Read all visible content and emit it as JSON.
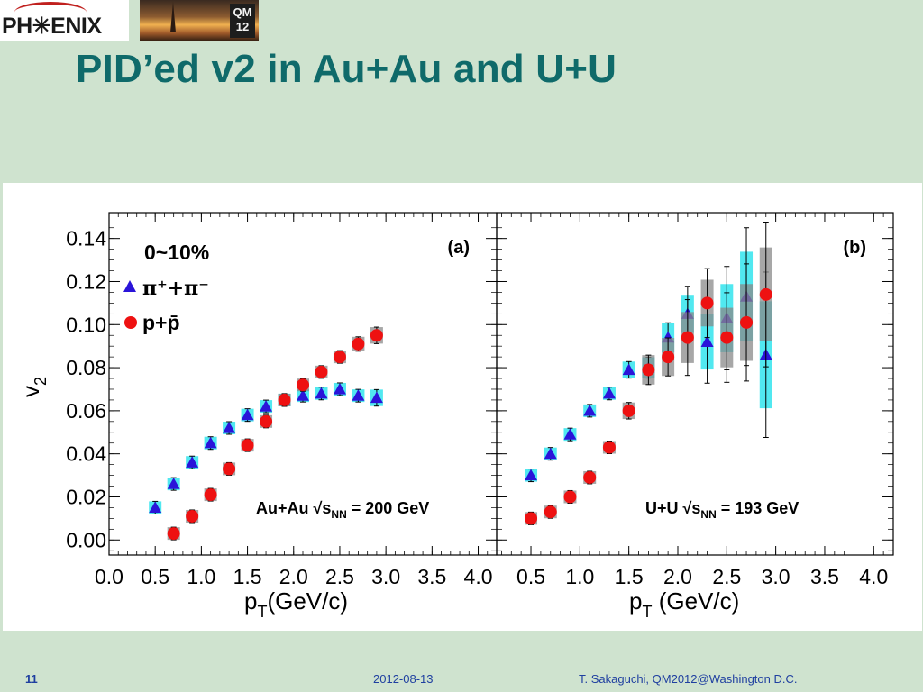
{
  "header": {
    "logo_text": "PH✳ENIX",
    "badge_text": "QM 12",
    "title": "PID’ed v2 in Au+Au and U+U"
  },
  "footer": {
    "slide_number": "11",
    "date": "2012-08-13",
    "author": "T. Sakaguchi, QM2012@Washington D.C."
  },
  "colors": {
    "background": "#cfe3cf",
    "title": "#0f6a6a",
    "footer": "#1f3fa0",
    "pion_marker": "#2a14d9",
    "proton_marker": "#ee1111",
    "pion_syst_box": "#3ee6ee",
    "proton_syst_box": "#8a8a8a"
  },
  "legend": {
    "centrality": "0~10%",
    "pion_label": "π⁺+π⁻",
    "proton_label": "p+p̄"
  },
  "chart_data": [
    {
      "type": "scatter",
      "panel_label": "(a)",
      "system_label": "Au+Au √sNN = 200 GeV",
      "xlabel": "pT(GeV/c)",
      "ylabel": "v2",
      "xlim": [
        0.0,
        4.2
      ],
      "ylim": [
        -0.007,
        0.152
      ],
      "xticks": [
        "0.0",
        "0.5",
        "1.0",
        "1.5",
        "2.0",
        "2.5",
        "3.0",
        "3.5",
        "4.0"
      ],
      "yticks": [
        "0.00",
        "0.02",
        "0.04",
        "0.06",
        "0.08",
        "0.10",
        "0.12",
        "0.14"
      ],
      "grid": false,
      "series": [
        {
          "name": "π⁺+π⁻",
          "marker": "triangle",
          "x": [
            0.5,
            0.7,
            0.9,
            1.1,
            1.3,
            1.5,
            1.7,
            1.9,
            2.1,
            2.3,
            2.5,
            2.7,
            2.9
          ],
          "y": [
            0.015,
            0.026,
            0.036,
            0.045,
            0.052,
            0.058,
            0.062,
            0.065,
            0.067,
            0.068,
            0.07,
            0.067,
            0.066
          ],
          "err": [
            0.0005,
            0.0005,
            0.0005,
            0.0005,
            0.0005,
            0.0005,
            0.0005,
            0.0008,
            0.001,
            0.0012,
            0.0015,
            0.002,
            0.003
          ]
        },
        {
          "name": "p+p̄",
          "marker": "circle",
          "x": [
            0.7,
            0.9,
            1.1,
            1.3,
            1.5,
            1.7,
            1.9,
            2.1,
            2.3,
            2.5,
            2.7,
            2.9
          ],
          "y": [
            0.003,
            0.011,
            0.021,
            0.033,
            0.044,
            0.055,
            0.065,
            0.072,
            0.078,
            0.085,
            0.091,
            0.095
          ],
          "err": [
            0.0005,
            0.0005,
            0.0005,
            0.0005,
            0.0005,
            0.0006,
            0.0008,
            0.001,
            0.0015,
            0.002,
            0.0025,
            0.003
          ]
        }
      ]
    },
    {
      "type": "scatter",
      "panel_label": "(b)",
      "system_label": "U+U √sNN = 193 GeV",
      "xlabel": "pT (GeV/c)",
      "ylabel": "v2",
      "xlim": [
        0.15,
        4.2
      ],
      "ylim": [
        -0.007,
        0.152
      ],
      "xticks": [
        "0.5",
        "1.0",
        "1.5",
        "2.0",
        "2.5",
        "3.0",
        "3.5",
        "4.0"
      ],
      "grid": false,
      "series": [
        {
          "name": "π⁺+π⁻",
          "marker": "triangle",
          "x": [
            0.5,
            0.7,
            0.9,
            1.1,
            1.3,
            1.5,
            1.7,
            1.9,
            2.1,
            2.3,
            2.5,
            2.7,
            2.9
          ],
          "y": [
            0.03,
            0.04,
            0.049,
            0.06,
            0.068,
            0.079,
            0.08,
            0.094,
            0.105,
            0.092,
            0.103,
            0.113,
            0.086
          ],
          "err": [
            0.0008,
            0.001,
            0.0012,
            0.0015,
            0.002,
            0.003,
            0.004,
            0.006,
            0.008,
            0.012,
            0.015,
            0.02,
            0.024
          ]
        },
        {
          "name": "p+p̄",
          "marker": "circle",
          "x": [
            0.5,
            0.7,
            0.9,
            1.1,
            1.3,
            1.5,
            1.7,
            1.9,
            2.1,
            2.3,
            2.5,
            2.7,
            2.9
          ],
          "y": [
            0.01,
            0.013,
            0.02,
            0.029,
            0.043,
            0.06,
            0.079,
            0.085,
            0.094,
            0.11,
            0.094,
            0.101,
            0.114
          ],
          "err": [
            0.0005,
            0.0008,
            0.001,
            0.0015,
            0.002,
            0.003,
            0.006,
            0.008,
            0.011,
            0.01,
            0.013,
            0.017,
            0.021
          ]
        }
      ]
    }
  ]
}
